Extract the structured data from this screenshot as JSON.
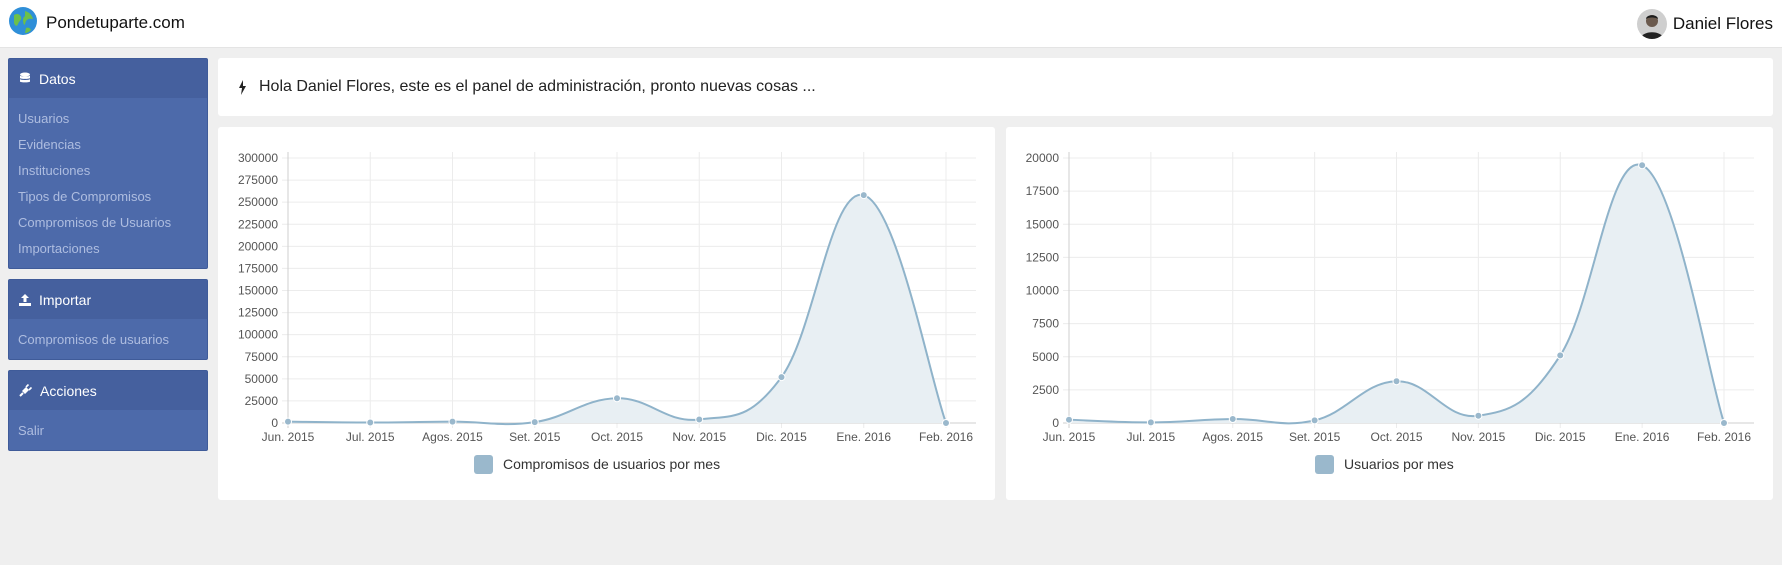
{
  "header": {
    "brand": "Pondetuparte.com",
    "brand_icon": "globe-icon",
    "user_name": "Daniel Flores"
  },
  "sidebar": {
    "panels": [
      {
        "title": "Datos",
        "icon": "database-icon",
        "items": [
          "Usuarios",
          "Evidencias",
          "Instituciones",
          "Tipos de Compromisos",
          "Compromisos de Usuarios",
          "Importaciones"
        ]
      },
      {
        "title": "Importar",
        "icon": "upload-icon",
        "items": [
          "Compromisos de usuarios"
        ]
      },
      {
        "title": "Acciones",
        "icon": "plug-icon",
        "items": [
          "Salir"
        ]
      }
    ]
  },
  "welcome": {
    "icon": "bolt-icon",
    "text": "Hola Daniel Flores, este es el panel de administración, pronto nuevas cosas ..."
  },
  "chart_data": [
    {
      "type": "area",
      "categories": [
        "Jun. 2015",
        "Jul. 2015",
        "Agos. 2015",
        "Set. 2015",
        "Oct. 2015",
        "Nov. 2015",
        "Dic. 2015",
        "Ene. 2016",
        "Feb. 2016"
      ],
      "series": [
        {
          "name": "Compromisos de usuarios por mes",
          "values": [
            1500,
            500,
            1500,
            1000,
            28000,
            4000,
            52000,
            258000,
            0
          ]
        }
      ],
      "ylim": [
        0,
        300000
      ],
      "yticks": [
        0,
        25000,
        50000,
        75000,
        100000,
        125000,
        150000,
        175000,
        200000,
        225000,
        250000,
        275000,
        300000
      ],
      "grid": true,
      "legend_position": "bottom",
      "color": "#8fb3ca",
      "fill": "#e8eff3"
    },
    {
      "type": "area",
      "categories": [
        "Jun. 2015",
        "Jul. 2015",
        "Agos. 2015",
        "Set. 2015",
        "Oct. 2015",
        "Nov. 2015",
        "Dic. 2015",
        "Ene. 2016",
        "Feb. 2016"
      ],
      "series": [
        {
          "name": "Usuarios por mes",
          "values": [
            250,
            50,
            300,
            200,
            3150,
            550,
            5100,
            19450,
            0
          ]
        }
      ],
      "ylim": [
        0,
        20000
      ],
      "yticks": [
        0,
        2500,
        5000,
        7500,
        10000,
        12500,
        15000,
        17500,
        20000
      ],
      "grid": true,
      "legend_position": "bottom",
      "color": "#8fb3ca",
      "fill": "#e8eff3"
    }
  ]
}
